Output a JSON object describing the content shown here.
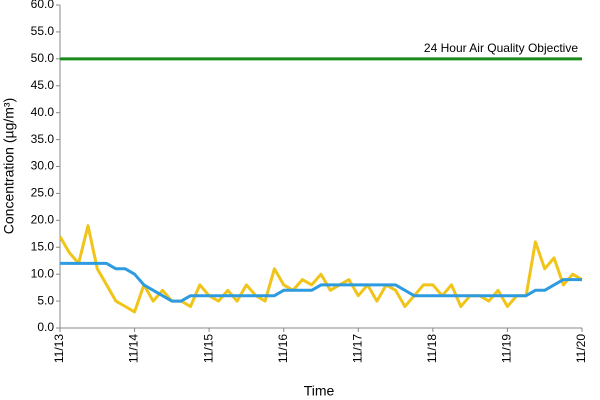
{
  "chart_data": {
    "type": "line",
    "x_label": "Time",
    "y_label": "Concentration (µg/m³)",
    "categories": [
      "11/13",
      null,
      null,
      null,
      null,
      null,
      null,
      null,
      "11/14",
      null,
      null,
      null,
      null,
      null,
      null,
      null,
      "11/15",
      null,
      null,
      null,
      null,
      null,
      null,
      null,
      "11/16",
      null,
      null,
      null,
      null,
      null,
      null,
      null,
      "11/17",
      null,
      null,
      null,
      null,
      null,
      null,
      null,
      "11/18",
      null,
      null,
      null,
      null,
      null,
      null,
      null,
      "11/19",
      null,
      null,
      null,
      null,
      null,
      null,
      null,
      "11/20"
    ],
    "series": [
      {
        "color": "#f0c419",
        "values": [
          17,
          14,
          12,
          19,
          11,
          8,
          5,
          4,
          3,
          8,
          5,
          7,
          5,
          5,
          4,
          8,
          6,
          5,
          7,
          5,
          8,
          6,
          5,
          11,
          8,
          7,
          9,
          8,
          10,
          7,
          8,
          9,
          6,
          8,
          5,
          8,
          7,
          4,
          6,
          8,
          8,
          6,
          8,
          4,
          6,
          6,
          5,
          7,
          4,
          6,
          6,
          16,
          11,
          13,
          8,
          10,
          9
        ]
      },
      {
        "color": "#2e9be0",
        "values": [
          12,
          12,
          12,
          12,
          12,
          12,
          11,
          11,
          10,
          8,
          7,
          6,
          5,
          5,
          6,
          6,
          6,
          6,
          6,
          6,
          6,
          6,
          6,
          6,
          7,
          7,
          7,
          7,
          8,
          8,
          8,
          8,
          8,
          8,
          8,
          8,
          8,
          7,
          6,
          6,
          6,
          6,
          6,
          6,
          6,
          6,
          6,
          6,
          6,
          6,
          6,
          7,
          7,
          8,
          9,
          9,
          9
        ]
      }
    ],
    "objective": {
      "value": 50,
      "label": "24 Hour Air Quality Objective",
      "color": "#1a8a1a"
    },
    "ylim": [
      0,
      60
    ],
    "yticks": [
      {
        "value": 0,
        "label": "0.0"
      },
      {
        "value": 5,
        "label": "5.0"
      },
      {
        "value": 10,
        "label": "10.0"
      },
      {
        "value": 15,
        "label": "15.0"
      },
      {
        "value": 20,
        "label": "20.0"
      },
      {
        "value": 25,
        "label": "25.0"
      },
      {
        "value": 30,
        "label": "30.0"
      },
      {
        "value": 35,
        "label": "35.0"
      },
      {
        "value": 40,
        "label": "40.0"
      },
      {
        "value": 45,
        "label": "45.0"
      },
      {
        "value": 50,
        "label": "50.0"
      },
      {
        "value": 55,
        "label": "55.0"
      },
      {
        "value": 60,
        "label": "60.0"
      }
    ]
  }
}
